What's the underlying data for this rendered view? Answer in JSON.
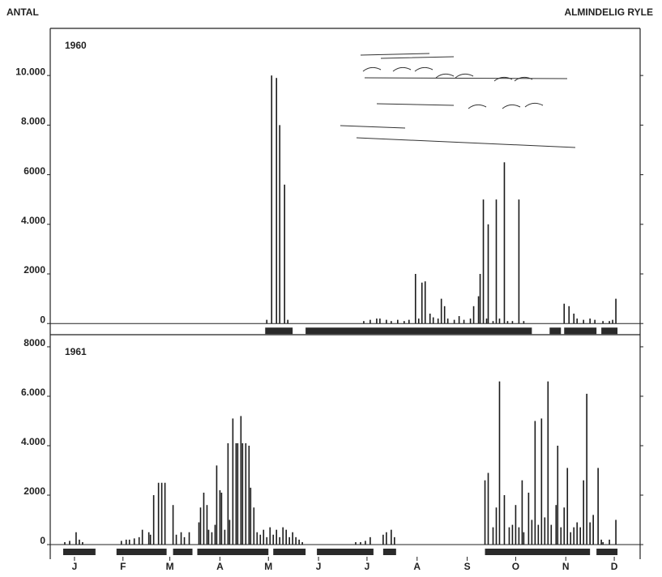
{
  "figure": {
    "ylabel": "ANTAL",
    "title": "ALMINDELIG RYLE"
  },
  "chart_data": [
    {
      "type": "bar",
      "title": "1960",
      "color": "#1a1a1a",
      "xlim": [
        0,
        365
      ],
      "ylim": [
        -450,
        11900
      ],
      "yticks": [
        0,
        {
          "value": 2000,
          "label": "2000"
        },
        {
          "value": 4000,
          "label": "4.000"
        },
        {
          "value": 6000,
          "label": "6000"
        },
        {
          "value": 8000,
          "label": "8.000"
        },
        {
          "value": 10000,
          "label": "10.000"
        }
      ],
      "x": [
        134,
        137,
        140,
        142,
        145,
        147,
        194,
        198,
        202,
        204,
        208,
        211,
        215,
        219,
        222,
        226,
        228,
        230,
        232,
        235,
        237,
        240,
        242,
        244,
        246,
        250,
        253,
        256,
        260,
        262,
        265,
        266,
        268,
        270,
        271,
        274,
        276,
        278,
        281,
        283,
        286,
        290,
        293,
        318,
        321,
        324,
        326,
        330,
        334,
        337,
        342,
        346,
        348,
        350
      ],
      "values": [
        150,
        10000,
        9900,
        8000,
        5600,
        150,
        100,
        150,
        200,
        200,
        150,
        100,
        150,
        100,
        150,
        2000,
        200,
        1650,
        1700,
        400,
        250,
        200,
        1000,
        700,
        200,
        150,
        300,
        150,
        200,
        700,
        1100,
        2000,
        5000,
        200,
        4000,
        100,
        5000,
        200,
        6500,
        100,
        100,
        5000,
        100,
        800,
        700,
        400,
        200,
        150,
        200,
        150,
        100,
        100,
        150,
        1000
      ],
      "observation_periods": [
        [
          133,
          150
        ],
        [
          158,
          298
        ],
        [
          309,
          316
        ],
        [
          318,
          338
        ],
        [
          341,
          351
        ]
      ]
    },
    {
      "type": "bar",
      "title": "1961",
      "color": "#1a1a1a",
      "xlim": [
        0,
        365
      ],
      "ylim": [
        -590,
        8490
      ],
      "xticks": [
        {
          "value": 15,
          "label": "J"
        },
        {
          "value": 45,
          "label": "F"
        },
        {
          "value": 74,
          "label": "M"
        },
        {
          "value": 105,
          "label": "A"
        },
        {
          "value": 135,
          "label": "M"
        },
        {
          "value": 166,
          "label": "J"
        },
        {
          "value": 196,
          "label": "J"
        },
        {
          "value": 227,
          "label": "A"
        },
        {
          "value": 258,
          "label": "S"
        },
        {
          "value": 288,
          "label": "O"
        },
        {
          "value": 319,
          "label": "N"
        },
        {
          "value": 349,
          "label": "D"
        }
      ],
      "yticks": [
        0,
        {
          "value": 2000,
          "label": "2000"
        },
        {
          "value": 4000,
          "label": "4.000"
        },
        {
          "value": 6000,
          "label": "6.000"
        },
        {
          "value": 8000,
          "label": "8000"
        }
      ],
      "x": [
        9,
        12,
        16,
        18,
        20,
        44,
        47,
        49,
        52,
        55,
        57,
        61,
        62,
        64,
        67,
        69,
        71,
        76,
        78,
        81,
        83,
        86,
        92,
        93,
        95,
        97,
        98,
        100,
        102,
        103,
        105,
        106,
        108,
        110,
        111,
        113,
        115,
        116,
        118,
        119,
        121,
        123,
        124,
        126,
        128,
        130,
        132,
        134,
        136,
        138,
        140,
        142,
        144,
        146,
        148,
        150,
        152,
        154,
        156,
        189,
        192,
        195,
        198,
        206,
        208,
        211,
        213,
        269,
        271,
        274,
        276,
        278,
        281,
        284,
        286,
        288,
        290,
        292,
        293,
        296,
        298,
        300,
        302,
        304,
        306,
        308,
        310,
        313,
        314,
        316,
        318,
        320,
        322,
        324,
        326,
        328,
        330,
        332,
        334,
        336,
        339,
        341,
        342,
        346,
        350
      ],
      "values": [
        100,
        150,
        500,
        200,
        100,
        150,
        200,
        200,
        250,
        300,
        600,
        500,
        400,
        2000,
        2500,
        2500,
        2500,
        1600,
        400,
        500,
        300,
        500,
        900,
        1500,
        2100,
        1600,
        600,
        500,
        800,
        3200,
        2200,
        2100,
        600,
        4100,
        1000,
        5100,
        4100,
        4100,
        5200,
        4100,
        4100,
        4000,
        2300,
        1500,
        500,
        400,
        600,
        300,
        700,
        400,
        600,
        300,
        700,
        600,
        300,
        500,
        300,
        200,
        100,
        100,
        100,
        150,
        300,
        400,
        500,
        600,
        300,
        2600,
        2900,
        700,
        1500,
        6600,
        2000,
        700,
        800,
        1600,
        700,
        2600,
        500,
        2100,
        1000,
        5000,
        800,
        5100,
        1100,
        6600,
        800,
        1600,
        4000,
        700,
        1500,
        3100,
        500,
        700,
        900,
        700,
        2600,
        6100,
        900,
        1200,
        3100,
        200,
        100,
        200,
        1000
      ],
      "observation_periods": [
        [
          8,
          28
        ],
        [
          41,
          72
        ],
        [
          76,
          88
        ],
        [
          91,
          135
        ],
        [
          138,
          158
        ],
        [
          165,
          200
        ],
        [
          206,
          214
        ],
        [
          269,
          334
        ],
        [
          338,
          351
        ]
      ]
    }
  ]
}
